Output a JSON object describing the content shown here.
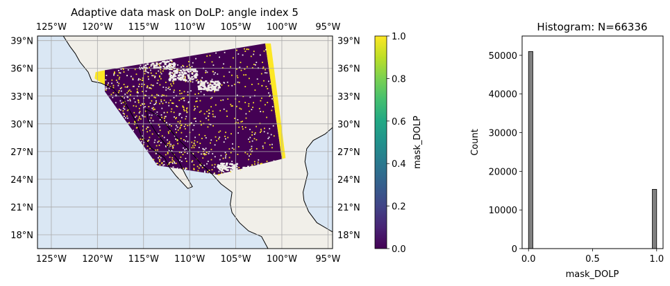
{
  "chart_data": [
    {
      "type": "heatmap",
      "title": "Adaptive data mask on DoLP: angle index 5",
      "projection": "PlateCarree",
      "lon_range": [
        -126.5,
        -94.5
      ],
      "lat_range": [
        16.5,
        39.5
      ],
      "x_ticks": [
        "125°W",
        "120°W",
        "115°W",
        "110°W",
        "105°W",
        "100°W",
        "95°W"
      ],
      "x_tick_values": [
        -125,
        -120,
        -115,
        -110,
        -105,
        -100,
        -95
      ],
      "y_ticks": [
        "18°N",
        "21°N",
        "24°N",
        "27°N",
        "30°N",
        "33°N",
        "36°N",
        "39°N"
      ],
      "y_tick_values": [
        18,
        21,
        24,
        27,
        30,
        33,
        36,
        39
      ],
      "grid": true,
      "colors": {
        "ocean": "#dae7f4",
        "land": "#f1efe9",
        "coast": "#000000",
        "grid": "#aaaaaa"
      },
      "colorbar": {
        "label": "mask_DOLP",
        "colormap": "viridis",
        "range": [
          0.0,
          1.0
        ],
        "ticks": [
          "0.0",
          "0.2",
          "0.4",
          "0.6",
          "0.8",
          "1.0"
        ],
        "tick_values": [
          0.0,
          0.2,
          0.4,
          0.6,
          0.8,
          1.0
        ]
      },
      "swath": {
        "value_low_color": "#440154",
        "value_high_color": "#fde725",
        "corners_lonlat": [
          [
            -119.2,
            35.8
          ],
          [
            -101.8,
            38.7
          ],
          [
            -100.0,
            26.2
          ],
          [
            -107.0,
            24.5
          ],
          [
            -113.5,
            25.5
          ],
          [
            -119.2,
            33.5
          ]
        ]
      }
    },
    {
      "type": "bar",
      "title": "Histogram: N=66336",
      "xlabel": "mask_DOLP",
      "ylabel": "Count",
      "xlim": [
        -0.05,
        1.05
      ],
      "ylim": [
        0,
        55000
      ],
      "x_ticks": [
        "0.0",
        "0.5",
        "1.0"
      ],
      "x_tick_values": [
        0.0,
        0.5,
        1.0
      ],
      "y_ticks": [
        "0",
        "10000",
        "20000",
        "30000",
        "40000",
        "50000"
      ],
      "y_tick_values": [
        0,
        10000,
        20000,
        30000,
        40000,
        50000
      ],
      "bins": [
        {
          "x": 0.0,
          "count": 51000
        },
        {
          "x": 1.0,
          "count": 15336
        }
      ],
      "bar_color": "#808080"
    }
  ]
}
